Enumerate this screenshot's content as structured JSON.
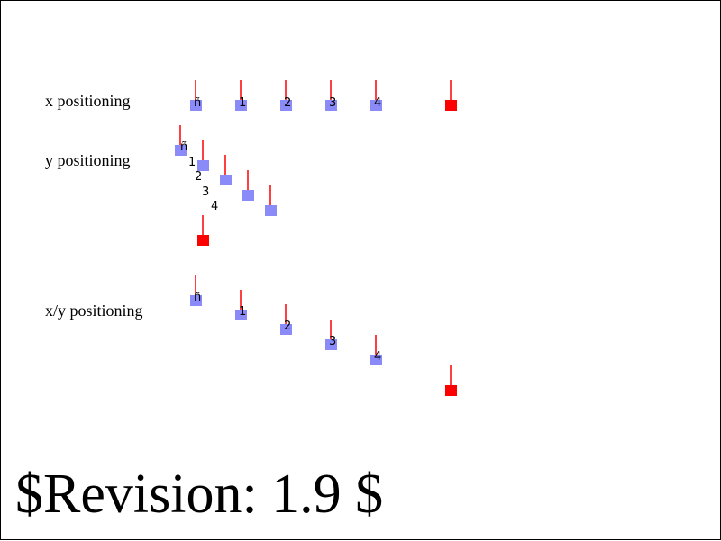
{
  "rows": [
    {
      "id": "x",
      "label": "x positioning",
      "glyphs": [
        "ñ",
        "1",
        "2",
        "3",
        "4"
      ]
    },
    {
      "id": "y",
      "label": "y positioning",
      "glyphs": [
        "ñ",
        "1",
        "2",
        "3",
        "4"
      ]
    },
    {
      "id": "xy",
      "label": "x/y positioning",
      "glyphs": [
        "ñ",
        "1",
        "2",
        "3",
        "4"
      ]
    }
  ],
  "revision": "$Revision: 1.9 $",
  "colors": {
    "marker": "#8a8af8",
    "reference": "#ff0000",
    "tick": "#ff0000",
    "text": "#000000",
    "border": "#000000"
  }
}
